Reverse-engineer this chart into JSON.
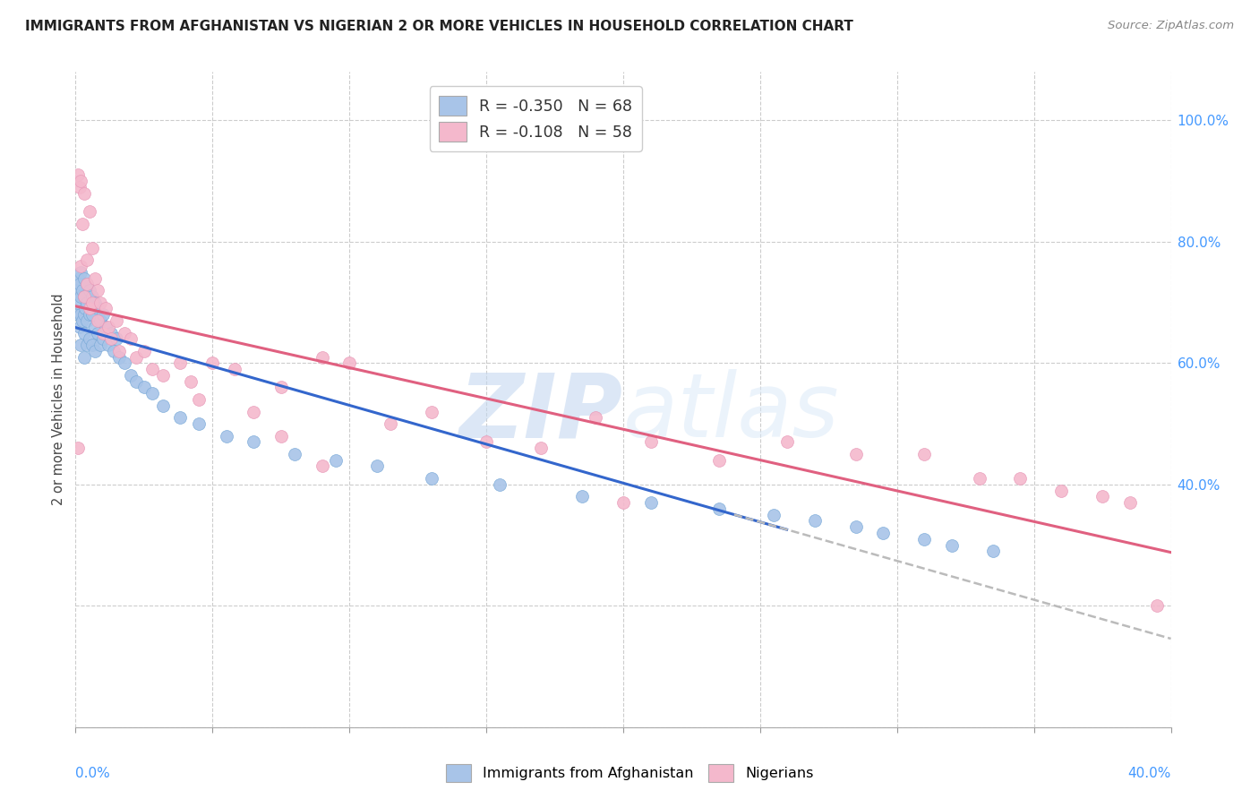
{
  "title": "IMMIGRANTS FROM AFGHANISTAN VS NIGERIAN 2 OR MORE VEHICLES IN HOUSEHOLD CORRELATION CHART",
  "source": "Source: ZipAtlas.com",
  "ylabel": "2 or more Vehicles in Household",
  "watermark_zip": "ZIP",
  "watermark_atlas": "atlas",
  "blue_color": "#a8c4e8",
  "pink_color": "#f4b8cc",
  "blue_line_color": "#3366cc",
  "pink_line_color": "#e06080",
  "dashed_line_color": "#bbbbbb",
  "axis_label_color": "#4499ff",
  "grid_color": "#cccccc",
  "R_afghanistan": -0.35,
  "N_afghanistan": 68,
  "R_nigerian": -0.108,
  "N_nigerian": 58,
  "xmin": 0.0,
  "xmax": 0.4,
  "ymin": 0.0,
  "ymax": 1.08,
  "afghanistan_x": [
    0.0005,
    0.0008,
    0.001,
    0.001,
    0.0015,
    0.0015,
    0.002,
    0.002,
    0.002,
    0.002,
    0.0025,
    0.0025,
    0.003,
    0.003,
    0.003,
    0.003,
    0.003,
    0.0035,
    0.004,
    0.004,
    0.004,
    0.004,
    0.005,
    0.005,
    0.005,
    0.006,
    0.006,
    0.006,
    0.007,
    0.007,
    0.007,
    0.008,
    0.008,
    0.009,
    0.009,
    0.01,
    0.01,
    0.011,
    0.012,
    0.013,
    0.014,
    0.015,
    0.016,
    0.018,
    0.02,
    0.022,
    0.025,
    0.028,
    0.032,
    0.038,
    0.045,
    0.055,
    0.065,
    0.08,
    0.095,
    0.11,
    0.13,
    0.155,
    0.185,
    0.21,
    0.235,
    0.255,
    0.27,
    0.285,
    0.295,
    0.31,
    0.32,
    0.335
  ],
  "afghanistan_y": [
    0.72,
    0.68,
    0.74,
    0.7,
    0.73,
    0.66,
    0.75,
    0.71,
    0.68,
    0.63,
    0.72,
    0.67,
    0.74,
    0.71,
    0.68,
    0.65,
    0.61,
    0.69,
    0.73,
    0.7,
    0.67,
    0.63,
    0.72,
    0.68,
    0.64,
    0.71,
    0.68,
    0.63,
    0.7,
    0.66,
    0.62,
    0.69,
    0.65,
    0.67,
    0.63,
    0.68,
    0.64,
    0.66,
    0.63,
    0.65,
    0.62,
    0.64,
    0.61,
    0.6,
    0.58,
    0.57,
    0.56,
    0.55,
    0.53,
    0.51,
    0.5,
    0.48,
    0.47,
    0.45,
    0.44,
    0.43,
    0.41,
    0.4,
    0.38,
    0.37,
    0.36,
    0.35,
    0.34,
    0.33,
    0.32,
    0.31,
    0.3,
    0.29
  ],
  "nigerian_x": [
    0.0008,
    0.001,
    0.0015,
    0.002,
    0.002,
    0.0025,
    0.003,
    0.003,
    0.004,
    0.004,
    0.005,
    0.005,
    0.006,
    0.006,
    0.007,
    0.008,
    0.008,
    0.009,
    0.01,
    0.011,
    0.012,
    0.013,
    0.015,
    0.016,
    0.018,
    0.02,
    0.022,
    0.025,
    0.028,
    0.032,
    0.038,
    0.042,
    0.05,
    0.058,
    0.065,
    0.075,
    0.09,
    0.1,
    0.115,
    0.13,
    0.15,
    0.17,
    0.19,
    0.21,
    0.235,
    0.26,
    0.285,
    0.31,
    0.33,
    0.345,
    0.36,
    0.375,
    0.385,
    0.395,
    0.2,
    0.09,
    0.075,
    0.045
  ],
  "nigerian_y": [
    0.46,
    0.91,
    0.89,
    0.9,
    0.76,
    0.83,
    0.88,
    0.71,
    0.77,
    0.73,
    0.85,
    0.69,
    0.79,
    0.7,
    0.74,
    0.72,
    0.67,
    0.7,
    0.65,
    0.69,
    0.66,
    0.64,
    0.67,
    0.62,
    0.65,
    0.64,
    0.61,
    0.62,
    0.59,
    0.58,
    0.6,
    0.57,
    0.6,
    0.59,
    0.52,
    0.56,
    0.61,
    0.6,
    0.5,
    0.52,
    0.47,
    0.46,
    0.51,
    0.47,
    0.44,
    0.47,
    0.45,
    0.45,
    0.41,
    0.41,
    0.39,
    0.38,
    0.37,
    0.2,
    0.37,
    0.43,
    0.48,
    0.54
  ]
}
